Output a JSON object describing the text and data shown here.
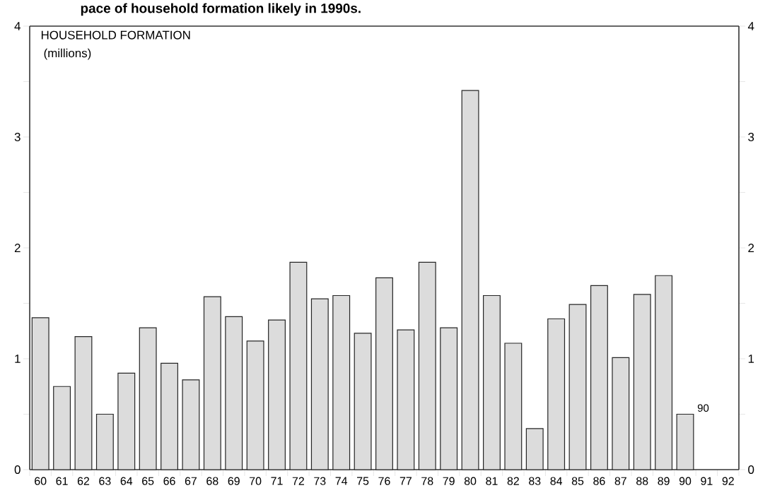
{
  "chart_data": {
    "type": "bar",
    "title": "pace of household formation likely in 1990s.",
    "ylabel": "HOUSEHOLD FORMATION",
    "annotations": [
      "(millions)",
      {
        "text": "90",
        "x": "90",
        "y": 0.5
      }
    ],
    "categories": [
      "60",
      "61",
      "62",
      "63",
      "64",
      "65",
      "66",
      "67",
      "68",
      "69",
      "70",
      "71",
      "72",
      "73",
      "74",
      "75",
      "76",
      "77",
      "78",
      "79",
      "80",
      "81",
      "82",
      "83",
      "84",
      "85",
      "86",
      "87",
      "88",
      "89",
      "90",
      "91",
      "92"
    ],
    "values": [
      1.37,
      0.75,
      1.2,
      0.5,
      0.87,
      1.28,
      0.96,
      0.81,
      1.56,
      1.38,
      1.16,
      1.35,
      1.87,
      1.54,
      1.57,
      1.23,
      1.73,
      1.26,
      1.87,
      1.28,
      3.42,
      1.57,
      1.14,
      0.37,
      1.36,
      1.49,
      1.66,
      1.01,
      1.58,
      1.75,
      0.5,
      null,
      null
    ],
    "color": "#dcdcdc",
    "ylim": [
      0,
      4
    ],
    "yticks": [
      0,
      {
        "value": 0.5,
        "label": null
      },
      1,
      {
        "value": 1.5,
        "label": null
      },
      2,
      {
        "value": 2.5,
        "label": null
      },
      3,
      {
        "value": 3.5,
        "label": null
      },
      4
    ],
    "y2lim": [
      0,
      4
    ],
    "y2ticks": [
      0,
      {
        "value": 0.5,
        "label": null
      },
      1,
      {
        "value": 1.5,
        "label": null
      },
      2,
      {
        "value": 2.5,
        "label": null
      },
      3,
      {
        "value": 3.5,
        "label": null
      },
      4
    ]
  }
}
